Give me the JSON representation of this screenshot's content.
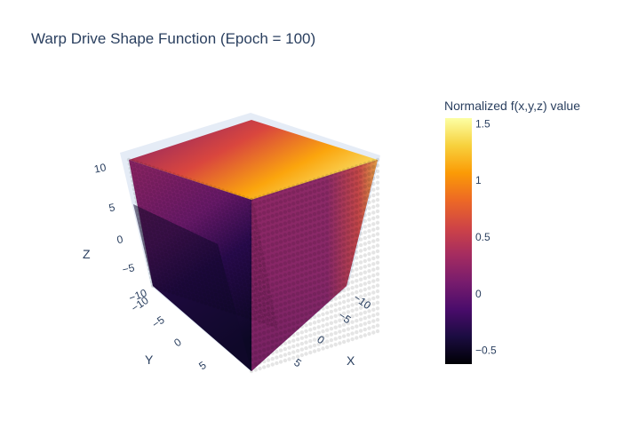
{
  "chart_data": {
    "type": "scatter3d",
    "title": "Warp Drive Shape Function (Epoch = 100)",
    "scene": {
      "x_axis": {
        "label": "X",
        "ticks": [
          "−10",
          "−5",
          "0",
          "5"
        ],
        "range": [
          -10,
          10
        ]
      },
      "y_axis": {
        "label": "Y",
        "ticks": [
          "−10",
          "−5",
          "0",
          "5"
        ],
        "range": [
          -10,
          10
        ]
      },
      "z_axis": {
        "label": "Z",
        "ticks": [
          "10",
          "5",
          "0",
          "−5",
          "−10"
        ],
        "range": [
          -10,
          10
        ]
      },
      "grid": true
    },
    "colorbar": {
      "title": "Normalized f(x,y,z) value",
      "colorscale": "Inferno",
      "range": [
        -0.62,
        1.55
      ],
      "ticks": [
        "1.5",
        "1",
        "0.5",
        "0",
        "−0.5"
      ],
      "tick_values": [
        1.5,
        1,
        0.5,
        0,
        -0.5
      ]
    },
    "marker_grid": {
      "x_range": [
        -10,
        10
      ],
      "y_range": [
        -10,
        10
      ],
      "z_range": [
        -10,
        10
      ],
      "points_per_axis": 41
    }
  },
  "colors": {
    "background": "#ffffff",
    "scene_frame": "#e5ecf6",
    "text": "#2a3f5f",
    "inferno": [
      "#000004",
      "#1b0c41",
      "#4a0c6b",
      "#781c6d",
      "#a52c60",
      "#cf4446",
      "#ed6925",
      "#fb9b06",
      "#f7d13d",
      "#fcffa4"
    ]
  }
}
